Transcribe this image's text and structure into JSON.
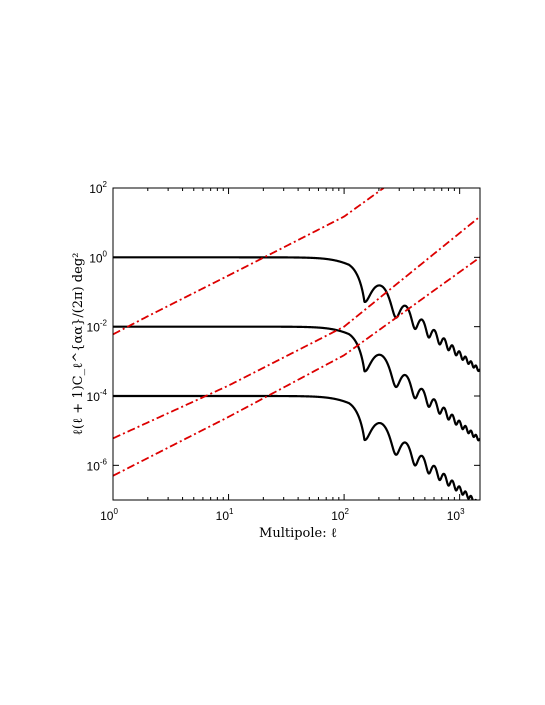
{
  "chart_data": {
    "type": "line",
    "xscale": "log",
    "yscale": "log",
    "xlim": [
      1,
      1500
    ],
    "ylim": [
      1e-07,
      100
    ],
    "grid": false,
    "legend": "none",
    "xlabel": "Multipole: ℓ",
    "ylabel": "ℓ(ℓ + 1)C_ℓ^{αα}/(2π) deg²",
    "x_ticks": [
      {
        "base": "10",
        "exp": "0",
        "value": 1
      },
      {
        "base": "10",
        "exp": "1",
        "value": 10
      },
      {
        "base": "10",
        "exp": "2",
        "value": 100
      },
      {
        "base": "10",
        "exp": "3",
        "value": 1000
      }
    ],
    "y_ticks": [
      {
        "base": "10",
        "exp": "-6",
        "value": 1e-06
      },
      {
        "base": "10",
        "exp": "-4",
        "value": 0.0001
      },
      {
        "base": "10",
        "exp": "-2",
        "value": 0.01
      },
      {
        "base": "10",
        "exp": "0",
        "value": 1
      },
      {
        "base": "10",
        "exp": "2",
        "value": 100
      }
    ],
    "series": [
      {
        "style": "solid",
        "color": "#000000",
        "plateau": 1.0,
        "knee": 110,
        "oscillation": {
          "first_trough": 150,
          "first_peak": 215,
          "end_value": 0.0006
        }
      },
      {
        "style": "solid",
        "color": "#000000",
        "plateau": 0.01,
        "knee": 110,
        "oscillation": {
          "first_trough": 150,
          "first_peak": 215,
          "end_value": 6e-06
        }
      },
      {
        "style": "solid",
        "color": "#000000",
        "plateau": 0.0001,
        "knee": 110,
        "oscillation": {
          "first_trough": 150,
          "first_peak": 215,
          "end_value": 8e-08
        }
      },
      {
        "style": "dash-dot",
        "color": "#dd0000",
        "x": [
          1,
          2,
          10,
          100,
          220
        ],
        "y": [
          0.006,
          0.02,
          0.3,
          15,
          100
        ]
      },
      {
        "style": "dash-dot",
        "color": "#dd0000",
        "x": [
          1,
          10,
          100,
          1500
        ],
        "y": [
          6e-06,
          0.0002,
          0.01,
          15
        ]
      },
      {
        "style": "dash-dot",
        "color": "#dd0000",
        "x": [
          1,
          10,
          100,
          1500
        ],
        "y": [
          5e-07,
          2.5e-05,
          0.0015,
          1
        ]
      }
    ]
  }
}
